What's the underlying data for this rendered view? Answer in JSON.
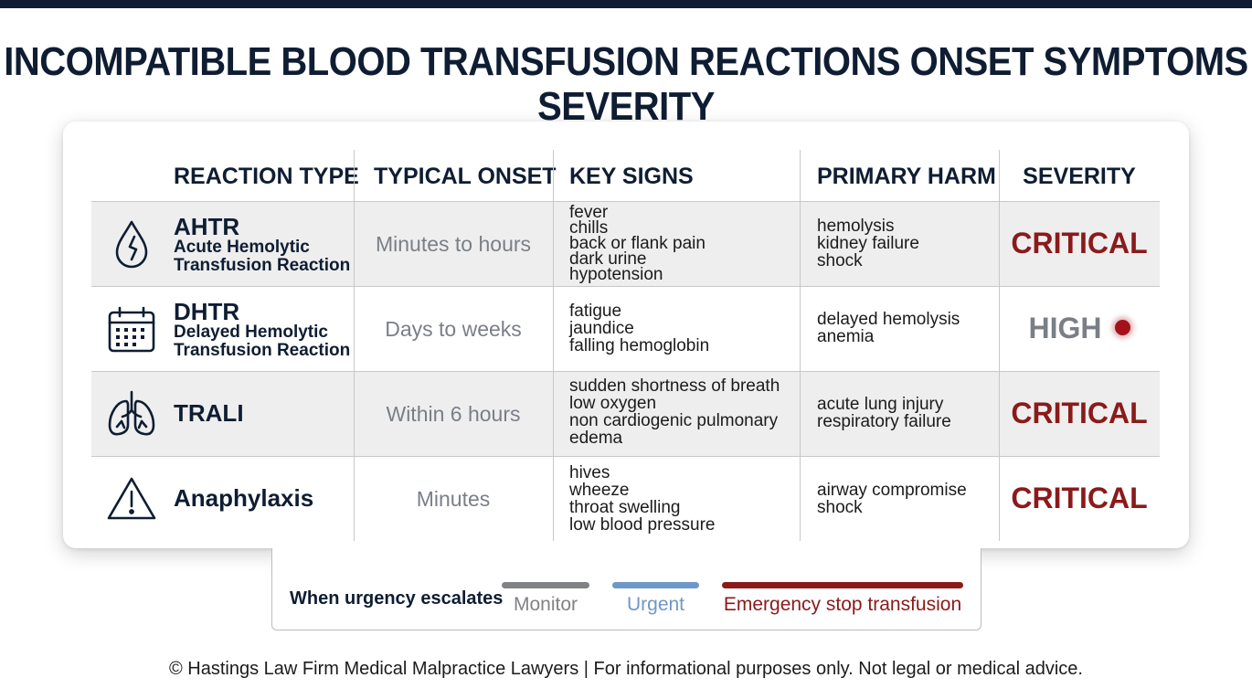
{
  "title": "INCOMPATIBLE BLOOD TRANSFUSION REACTIONS ONSET SYMPTOMS SEVERITY",
  "headers": {
    "type": "REACTION TYPE",
    "onset": "TYPICAL ONSET",
    "signs": "KEY SIGNS",
    "harm": "PRIMARY HARM",
    "severity": "SEVERITY"
  },
  "rows": [
    {
      "icon": "blood-drop-icon",
      "abbr": "AHTR",
      "full": [
        "Acute Hemolytic",
        "Transfusion Reaction"
      ],
      "onset": "Minutes to hours",
      "signs": [
        "fever",
        "chills",
        "back or flank pain",
        "dark urine",
        "hypotension"
      ],
      "harm": [
        "hemolysis",
        "kidney failure",
        "shock"
      ],
      "severity": "CRITICAL"
    },
    {
      "icon": "calendar-icon",
      "abbr": "DHTR",
      "full": [
        "Delayed Hemolytic",
        "Transfusion Reaction"
      ],
      "onset": "Days to weeks",
      "signs": [
        "fatigue",
        "jaundice",
        "falling hemoglobin"
      ],
      "harm": [
        "delayed hemolysis",
        "anemia"
      ],
      "severity": "HIGH"
    },
    {
      "icon": "lungs-icon",
      "abbr": "TRALI",
      "full": [],
      "onset": "Within 6 hours",
      "signs": [
        "sudden shortness of breath",
        "low oxygen",
        "non cardiogenic pulmonary",
        "edema"
      ],
      "harm": [
        "acute lung injury",
        "respiratory failure"
      ],
      "severity": "CRITICAL"
    },
    {
      "icon": "warning-icon",
      "abbr": "Anaphylaxis",
      "full": [],
      "onset": "Minutes",
      "signs": [
        "hives",
        "wheeze",
        "throat swelling",
        "low blood pressure"
      ],
      "harm": [
        "airway compromise",
        "shock"
      ],
      "severity": "CRITICAL"
    }
  ],
  "legend": {
    "label": "When urgency escalates",
    "items": [
      {
        "label": "Monitor",
        "color": "#808285"
      },
      {
        "label": "Urgent",
        "color": "#6f97c8"
      },
      {
        "label": "Emergency stop transfusion",
        "color": "#8b1a1a"
      }
    ]
  },
  "colors": {
    "navy": "#0f1d33",
    "critical": "#8b1a1a",
    "high": "#7a7f87",
    "high_dot": "#a3121b"
  },
  "footer": "© Hastings Law Firm Medical Malpractice Lawyers | For informational purposes only. Not legal or medical advice."
}
